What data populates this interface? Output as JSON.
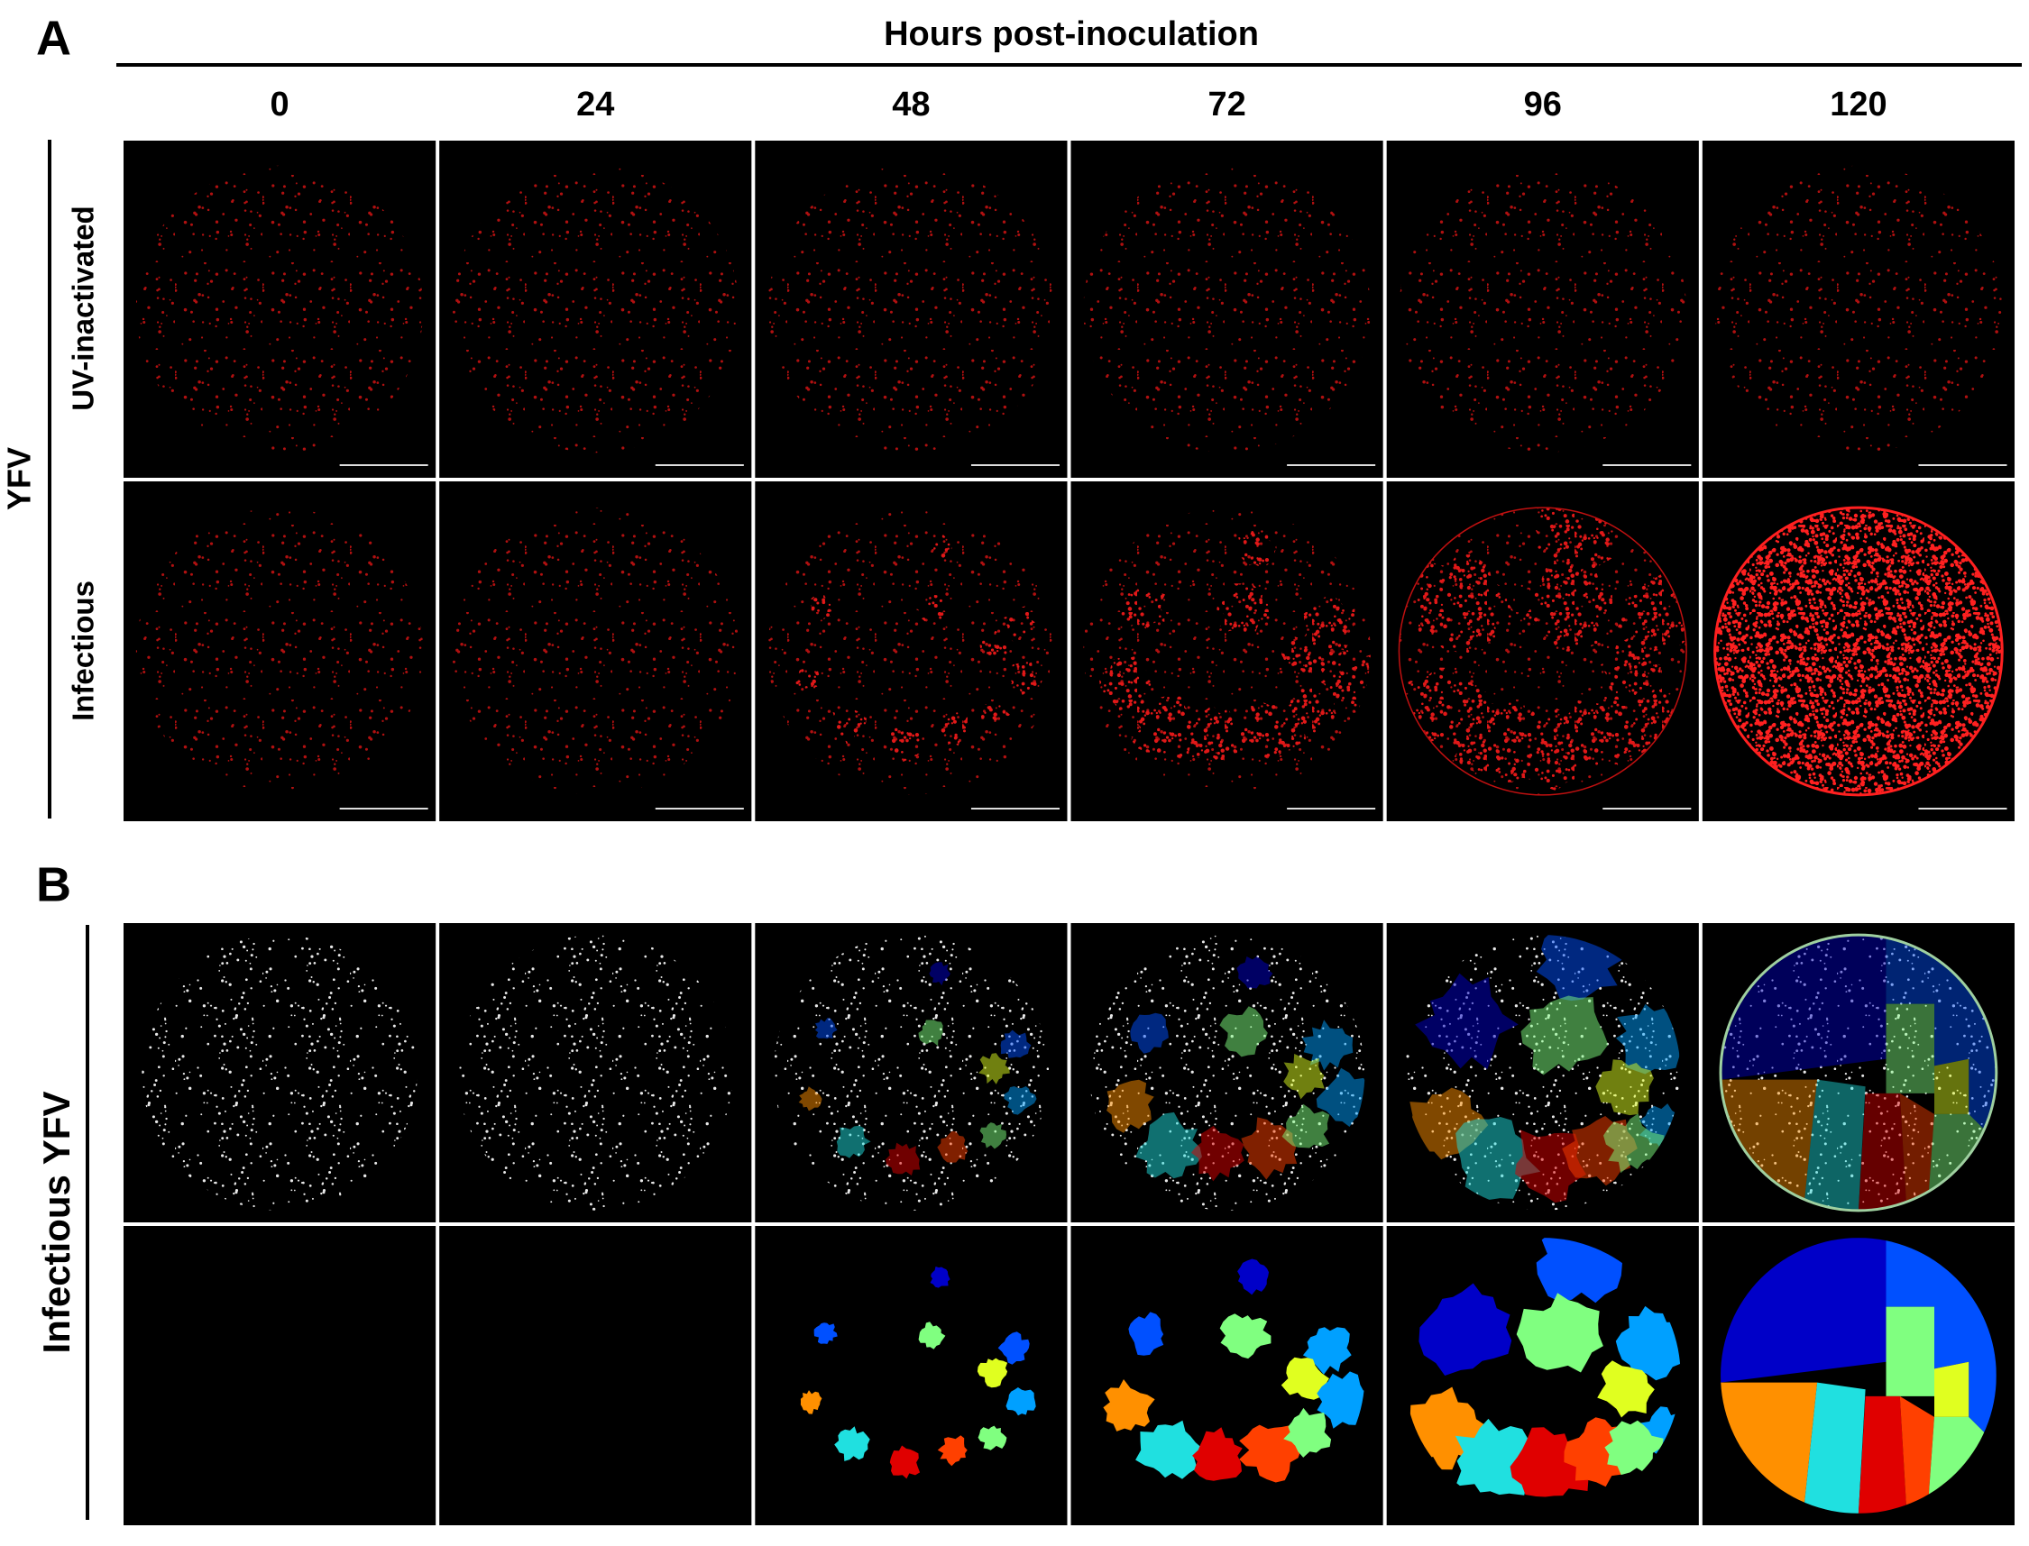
{
  "panel_a": {
    "label": "A",
    "header": "Hours post-inoculation",
    "columns": [
      "0",
      "24",
      "48",
      "72",
      "96",
      "120"
    ],
    "group_label": "YFV",
    "rows": [
      "UV-inactivated",
      "Infectious"
    ]
  },
  "panel_b": {
    "label": "B",
    "group_label": "Infectious YFV"
  }
}
